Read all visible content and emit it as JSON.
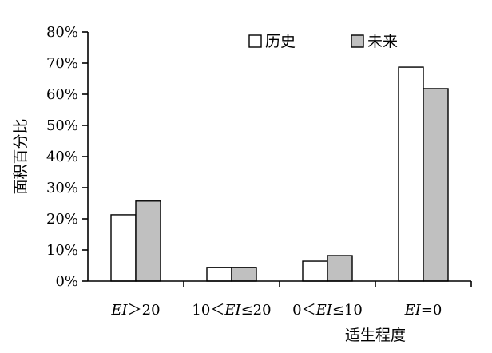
{
  "chart_data": {
    "type": "bar",
    "title": "",
    "xlabel": "适生程度",
    "ylabel": "面积百分比",
    "ylim": [
      0,
      80
    ],
    "y_ticks": [
      "0%",
      "10%",
      "20%",
      "30%",
      "40%",
      "50%",
      "60%",
      "70%",
      "80%"
    ],
    "categories": [
      {
        "parts": [
          {
            "t": "EI",
            "italic": true
          },
          {
            "t": "＞20",
            "italic": false
          }
        ]
      },
      {
        "parts": [
          {
            "t": "10＜",
            "italic": false
          },
          {
            "t": "EI",
            "italic": true
          },
          {
            "t": "≤20",
            "italic": false
          }
        ]
      },
      {
        "parts": [
          {
            "t": "0＜",
            "italic": false
          },
          {
            "t": "EI",
            "italic": true
          },
          {
            "t": "≤10",
            "italic": false
          }
        ]
      },
      {
        "parts": [
          {
            "t": "EI",
            "italic": true
          },
          {
            "t": "=0",
            "italic": false
          }
        ]
      }
    ],
    "series": [
      {
        "name": "历史",
        "color": "#ffffff",
        "values": [
          21.3,
          4.4,
          6.4,
          68.7
        ]
      },
      {
        "name": "未来",
        "color": "#c0c0c0",
        "values": [
          25.7,
          4.4,
          8.2,
          61.8
        ]
      }
    ],
    "legend_position": "top-right",
    "grid": false
  }
}
